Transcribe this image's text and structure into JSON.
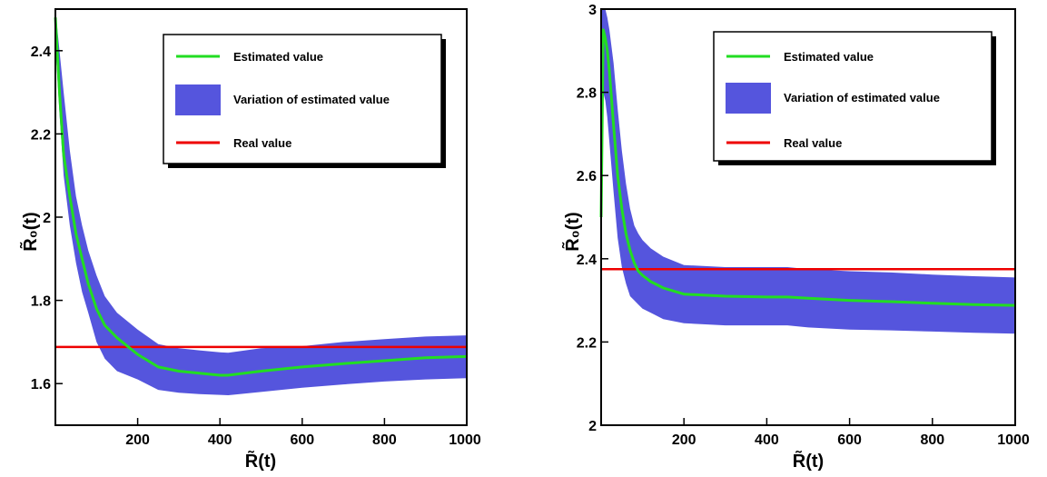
{
  "chart_data": [
    {
      "type": "line",
      "title": "",
      "xlabel": "R̃(t)",
      "ylabel": "R̃₀(t)",
      "xlim": [
        0,
        1000
      ],
      "ylim": [
        1.5,
        2.5
      ],
      "xticks": [
        200,
        400,
        600,
        800,
        1000
      ],
      "yticks": [
        1.6,
        1.8,
        2,
        2.2,
        2.4
      ],
      "ytick_labels": [
        "1.6",
        "1.8",
        "2",
        "2.2",
        "2.4"
      ],
      "grid": false,
      "legend_position": "top-right",
      "series": [
        {
          "name": "Estimated value",
          "color": "#22dd22",
          "x": [
            0,
            10,
            20,
            35,
            50,
            65,
            80,
            100,
            120,
            150,
            200,
            250,
            300,
            350,
            400,
            420,
            500,
            600,
            700,
            800,
            900,
            1000
          ],
          "values": [
            2.48,
            2.3,
            2.15,
            2.05,
            1.96,
            1.9,
            1.84,
            1.78,
            1.74,
            1.71,
            1.67,
            1.64,
            1.63,
            1.625,
            1.62,
            1.62,
            1.63,
            1.64,
            1.648,
            1.655,
            1.662,
            1.665
          ]
        },
        {
          "name": "Variation of estimated value",
          "color": "#5555dd",
          "x": [
            0,
            10,
            20,
            35,
            50,
            65,
            80,
            100,
            120,
            150,
            200,
            250,
            300,
            350,
            400,
            420,
            500,
            600,
            700,
            800,
            900,
            1000
          ],
          "lower": [
            2.42,
            2.25,
            2.1,
            1.98,
            1.89,
            1.82,
            1.77,
            1.7,
            1.66,
            1.63,
            1.61,
            1.585,
            1.578,
            1.575,
            1.573,
            1.572,
            1.58,
            1.59,
            1.598,
            1.605,
            1.61,
            1.613
          ],
          "upper": [
            2.5,
            2.4,
            2.3,
            2.16,
            2.05,
            1.98,
            1.92,
            1.86,
            1.81,
            1.77,
            1.73,
            1.695,
            1.685,
            1.68,
            1.675,
            1.674,
            1.685,
            1.69,
            1.7,
            1.707,
            1.713,
            1.716
          ]
        },
        {
          "name": "Real value",
          "color": "#ee0000",
          "x": [
            0,
            1000
          ],
          "values": [
            1.688,
            1.688
          ]
        }
      ]
    },
    {
      "type": "line",
      "title": "",
      "xlabel": "R̃(t)",
      "ylabel": "R̃₀(t)",
      "xlim": [
        0,
        1000
      ],
      "ylim": [
        2,
        3
      ],
      "xticks": [
        200,
        400,
        600,
        800,
        1000
      ],
      "yticks": [
        2,
        2.2,
        2.4,
        2.6,
        2.8,
        3
      ],
      "ytick_labels": [
        "2",
        "2.2",
        "2.4",
        "2.6",
        "2.8",
        "3"
      ],
      "grid": false,
      "legend_position": "top-right",
      "series": [
        {
          "name": "Estimated value",
          "color": "#22dd22",
          "x": [
            0,
            5,
            10,
            15,
            20,
            30,
            40,
            50,
            60,
            70,
            80,
            90,
            100,
            120,
            150,
            200,
            300,
            400,
            450,
            500,
            600,
            700,
            800,
            900,
            1000
          ],
          "values": [
            2.5,
            2.95,
            2.93,
            2.9,
            2.85,
            2.72,
            2.6,
            2.52,
            2.46,
            2.42,
            2.39,
            2.37,
            2.36,
            2.345,
            2.33,
            2.315,
            2.31,
            2.308,
            2.308,
            2.305,
            2.3,
            2.297,
            2.293,
            2.29,
            2.288
          ]
        },
        {
          "name": "Variation of estimated value",
          "color": "#5555dd",
          "x": [
            0,
            5,
            10,
            15,
            20,
            30,
            40,
            50,
            60,
            70,
            80,
            90,
            100,
            120,
            150,
            200,
            300,
            400,
            450,
            500,
            600,
            700,
            800,
            900,
            1000
          ],
          "lower": [
            2.8,
            2.8,
            2.78,
            2.74,
            2.68,
            2.56,
            2.45,
            2.38,
            2.34,
            2.31,
            2.3,
            2.29,
            2.28,
            2.27,
            2.255,
            2.245,
            2.24,
            2.24,
            2.24,
            2.235,
            2.23,
            2.228,
            2.225,
            2.222,
            2.22
          ],
          "upper": [
            3,
            3,
            3,
            2.98,
            2.95,
            2.87,
            2.76,
            2.66,
            2.58,
            2.52,
            2.48,
            2.46,
            2.445,
            2.425,
            2.405,
            2.385,
            2.38,
            2.38,
            2.38,
            2.375,
            2.37,
            2.367,
            2.362,
            2.358,
            2.355
          ]
        },
        {
          "name": "Real value",
          "color": "#ee0000",
          "x": [
            0,
            1000
          ],
          "values": [
            2.375,
            2.375
          ]
        }
      ]
    }
  ]
}
